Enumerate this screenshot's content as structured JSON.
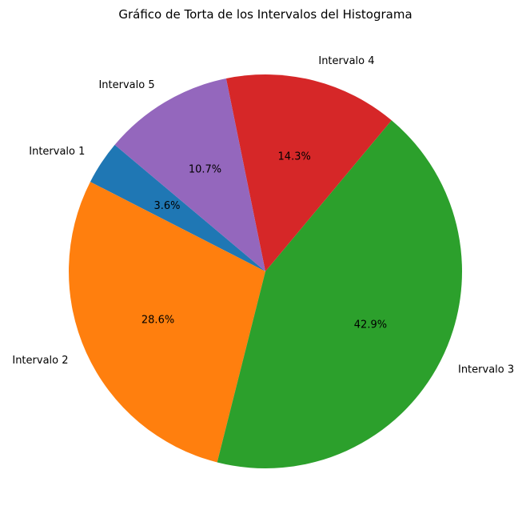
{
  "chart_data": {
    "type": "pie",
    "title": "Gráfico de Torta de los Intervalos del Histograma",
    "slices": [
      {
        "label": "Intervalo 1",
        "value": 3.6,
        "pct_label": "3.6%",
        "color": "#1f77b4"
      },
      {
        "label": "Intervalo 2",
        "value": 28.6,
        "pct_label": "28.6%",
        "color": "#ff7f0e"
      },
      {
        "label": "Intervalo 3",
        "value": 42.9,
        "pct_label": "42.9%",
        "color": "#2ca02c"
      },
      {
        "label": "Intervalo 4",
        "value": 14.3,
        "pct_label": "14.3%",
        "color": "#d62728"
      },
      {
        "label": "Intervalo 5",
        "value": 10.7,
        "pct_label": "10.7%",
        "color": "#9467bd"
      }
    ],
    "start_angle_deg": 140,
    "direction": "counterclockwise",
    "legend": "none"
  }
}
